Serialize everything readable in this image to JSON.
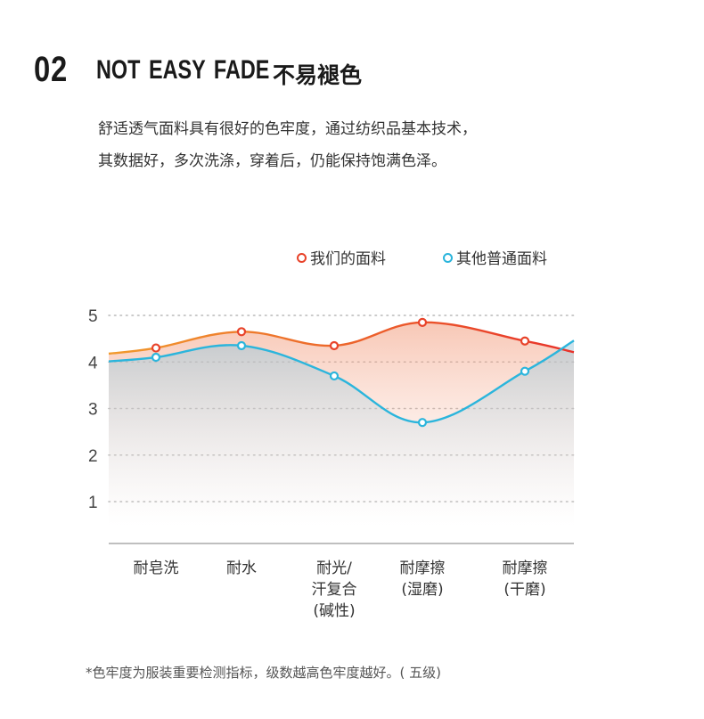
{
  "header": {
    "number": "02",
    "title_en": "NOT EASY  FADE",
    "title_cn": "不易褪色"
  },
  "description": {
    "line1": "舒适透气面料具有很好的色牢度，通过纺织品基本技术，",
    "line2": "其数据好，多次洗涤，穿着后，仍能保持饱满色泽。"
  },
  "footnote": "*色牢度为服装重要检测指标，级数越高色牢度越好。( 五级)",
  "colors": {
    "ours": "#e8432a",
    "others": "#2bb5dc"
  },
  "chart_data": {
    "type": "line",
    "categories": [
      [
        "耐皂洗"
      ],
      [
        "耐水"
      ],
      [
        "耐光/",
        "汗复合",
        "(碱性)"
      ],
      [
        "耐摩擦",
        "(湿磨)"
      ],
      [
        "耐摩擦",
        "(干磨)"
      ]
    ],
    "series": [
      {
        "name": "我们的面料",
        "values": [
          4.3,
          4.65,
          4.35,
          4.85,
          4.45
        ]
      },
      {
        "name": "其他普通面料",
        "values": [
          4.1,
          4.35,
          3.7,
          2.7,
          3.8
        ]
      }
    ],
    "yticks": [
      "1",
      "2",
      "3",
      "4",
      "5"
    ],
    "ylim": [
      0,
      5
    ],
    "grid": true,
    "legend_position": "top"
  }
}
